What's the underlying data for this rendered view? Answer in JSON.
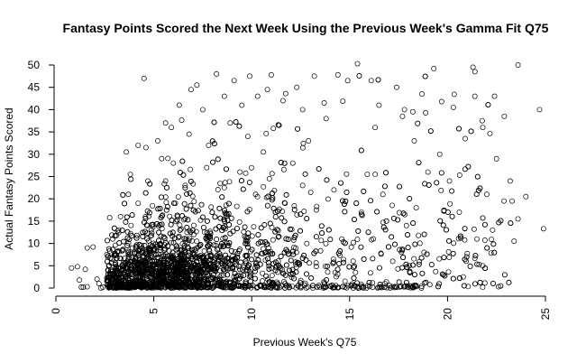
{
  "chart_data": {
    "type": "scatter",
    "title": "Fantasy Points Scored the Next Week Using the Previous Week's Gamma Fit Q75",
    "xlabel": "Previous Week's Q75",
    "ylabel": "Actual Fantasy Points Scored",
    "xlim": [
      0,
      25.5
    ],
    "ylim": [
      0,
      51
    ],
    "x_ticks": [
      0,
      5,
      10,
      15,
      20,
      25
    ],
    "y_ticks": [
      0,
      5,
      10,
      15,
      20,
      25,
      30,
      35,
      40,
      45,
      50
    ],
    "x_tick_labels": [
      "0",
      "5",
      "10",
      "15",
      "20",
      "25"
    ],
    "y_tick_labels": [
      "0",
      "5",
      "10",
      "15",
      "20",
      "25",
      "30",
      "35",
      "40",
      "45",
      "50"
    ],
    "grid": false,
    "legend": "none",
    "series": [
      {
        "marker": "open-circle",
        "color": "#000000",
        "points": [
          [
            0.8,
            4.5
          ],
          [
            1.1,
            4.8
          ],
          [
            1.2,
            1.8
          ],
          [
            1.3,
            0.2
          ],
          [
            1.4,
            0.2
          ],
          [
            1.5,
            4.2
          ],
          [
            1.6,
            9.0
          ],
          [
            1.6,
            0.3
          ],
          [
            1.9,
            9.2
          ],
          [
            2.1,
            2.0
          ],
          [
            2.2,
            1.0
          ],
          [
            2.3,
            0.0
          ],
          [
            2.4,
            0.2
          ],
          [
            2.6,
            7.5
          ],
          [
            2.8,
            1.5
          ],
          [
            3.1,
            0.0
          ],
          [
            3.2,
            13.0
          ],
          [
            3.6,
            30.5
          ],
          [
            3.8,
            25.5
          ],
          [
            4.2,
            32.0
          ],
          [
            4.6,
            31.5
          ],
          [
            4.5,
            47.0
          ],
          [
            5.2,
            33.0
          ],
          [
            5.6,
            37.0
          ],
          [
            6.0,
            28.0
          ],
          [
            6.3,
            41.0
          ],
          [
            6.9,
            44.5
          ],
          [
            7.2,
            45.5
          ],
          [
            7.5,
            40.0
          ],
          [
            8.2,
            48.0
          ],
          [
            8.6,
            43.0
          ],
          [
            9.1,
            46.5
          ],
          [
            9.5,
            41.0
          ],
          [
            9.9,
            47.5
          ],
          [
            10.3,
            43.0
          ],
          [
            10.8,
            44.5
          ],
          [
            11.0,
            47.8
          ],
          [
            11.6,
            42.0
          ],
          [
            12.3,
            45.0
          ],
          [
            12.6,
            40.0
          ],
          [
            13.2,
            47.5
          ],
          [
            13.7,
            41.5
          ],
          [
            14.4,
            47.8
          ],
          [
            14.9,
            46.5
          ],
          [
            15.4,
            50.3
          ],
          [
            16.1,
            46.5
          ],
          [
            16.5,
            41.0
          ],
          [
            17.4,
            45.0
          ],
          [
            17.8,
            40.0
          ],
          [
            18.7,
            43.5
          ],
          [
            19.3,
            49.2
          ],
          [
            19.7,
            41.8
          ],
          [
            20.3,
            40.5
          ],
          [
            21.3,
            49.5
          ],
          [
            21.4,
            48.5
          ],
          [
            22.4,
            43.0
          ],
          [
            23.6,
            50.0
          ],
          [
            22.9,
            38.5
          ],
          [
            21.8,
            36.0
          ],
          [
            20.9,
            33.5
          ],
          [
            22.5,
            29.0
          ],
          [
            23.2,
            24.0
          ],
          [
            24.0,
            20.5
          ],
          [
            23.6,
            15.5
          ],
          [
            24.7,
            40.0
          ],
          [
            24.9,
            13.3
          ],
          [
            23.4,
            10.5
          ],
          [
            22.3,
            13.0
          ],
          [
            21.8,
            5.0
          ],
          [
            20.8,
            2.5
          ],
          [
            22.6,
            0.3
          ],
          [
            23.3,
            19.5
          ],
          [
            20.1,
            24.0
          ],
          [
            19.6,
            30.0
          ],
          [
            18.4,
            18.0
          ],
          [
            17.2,
            6.0
          ],
          [
            16.8,
            1.0
          ],
          [
            15.9,
            25.5
          ],
          [
            15.3,
            3.5
          ],
          [
            14.6,
            11.0
          ],
          [
            13.8,
            38.0
          ],
          [
            12.9,
            33.0
          ],
          [
            12.1,
            28.0
          ],
          [
            11.4,
            36.5
          ],
          [
            10.6,
            30.5
          ],
          [
            9.8,
            34.0
          ],
          [
            8.9,
            37.0
          ],
          [
            7.8,
            32.0
          ],
          [
            6.8,
            34.5
          ],
          [
            5.9,
            36.0
          ],
          [
            5.4,
            29.0
          ],
          [
            4.7,
            24.0
          ],
          [
            4.2,
            19.0
          ],
          [
            3.7,
            21.0
          ],
          [
            3.3,
            16.0
          ],
          [
            2.9,
            11.0
          ],
          [
            16.3,
            36.0
          ],
          [
            17.7,
            38.5
          ],
          [
            18.3,
            33.0
          ],
          [
            19.0,
            26.0
          ],
          [
            20.6,
            17.0
          ],
          [
            21.5,
            11.0
          ],
          [
            22.0,
            21.0
          ],
          [
            18.8,
            8.0
          ],
          [
            19.8,
            3.0
          ],
          [
            17.9,
            14.0
          ],
          [
            16.7,
            21.0
          ],
          [
            15.6,
            17.0
          ],
          [
            14.2,
            22.0
          ],
          [
            13.3,
            17.5
          ],
          [
            12.6,
            23.0
          ],
          [
            11.7,
            19.0
          ],
          [
            10.9,
            24.5
          ],
          [
            10.2,
            21.0
          ],
          [
            9.4,
            26.0
          ],
          [
            8.6,
            22.5
          ],
          [
            7.7,
            27.0
          ],
          [
            6.6,
            23.0
          ],
          [
            6.1,
            19.0
          ],
          [
            5.6,
            24.0
          ]
        ]
      }
    ],
    "note": "Dense cloud of several thousand open circles; points listed are representative reads. Density concentrates for x in 3-10 and y in 0-20, thinning toward upper right."
  }
}
